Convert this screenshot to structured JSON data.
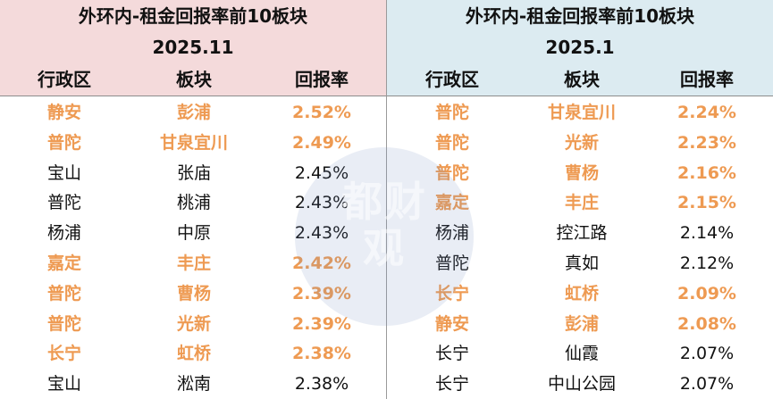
{
  "left": {
    "title": "外环内-租金回报率前10板块",
    "date": "2025.11",
    "headers": [
      "行政区",
      "板块",
      "回报率"
    ],
    "rows": [
      {
        "district": "静安",
        "block": "彭浦",
        "rate": "2.52%",
        "highlight": true
      },
      {
        "district": "普陀",
        "block": "甘泉宜川",
        "rate": "2.49%",
        "highlight": true
      },
      {
        "district": "宝山",
        "block": "张庙",
        "rate": "2.45%",
        "highlight": false
      },
      {
        "district": "普陀",
        "block": "桃浦",
        "rate": "2.43%",
        "highlight": false
      },
      {
        "district": "杨浦",
        "block": "中原",
        "rate": "2.43%",
        "highlight": false
      },
      {
        "district": "嘉定",
        "block": "丰庄",
        "rate": "2.42%",
        "highlight": true
      },
      {
        "district": "普陀",
        "block": "曹杨",
        "rate": "2.39%",
        "highlight": true
      },
      {
        "district": "普陀",
        "block": "光新",
        "rate": "2.39%",
        "highlight": true
      },
      {
        "district": "长宁",
        "block": "虹桥",
        "rate": "2.38%",
        "highlight": true
      },
      {
        "district": "宝山",
        "block": "淞南",
        "rate": "2.38%",
        "highlight": false
      }
    ]
  },
  "right": {
    "title": "外环内-租金回报率前10板块",
    "date": "2025.1",
    "headers": [
      "行政区",
      "板块",
      "回报率"
    ],
    "rows": [
      {
        "district": "普陀",
        "block": "甘泉宜川",
        "rate": "2.24%",
        "highlight": true
      },
      {
        "district": "普陀",
        "block": "光新",
        "rate": "2.23%",
        "highlight": true
      },
      {
        "district": "普陀",
        "block": "曹杨",
        "rate": "2.16%",
        "highlight": true
      },
      {
        "district": "嘉定",
        "block": "丰庄",
        "rate": "2.15%",
        "highlight": true
      },
      {
        "district": "杨浦",
        "block": "控江路",
        "rate": "2.14%",
        "highlight": false
      },
      {
        "district": "普陀",
        "block": "真如",
        "rate": "2.12%",
        "highlight": false
      },
      {
        "district": "长宁",
        "block": "虹桥",
        "rate": "2.09%",
        "highlight": true
      },
      {
        "district": "静安",
        "block": "彭浦",
        "rate": "2.08%",
        "highlight": true
      },
      {
        "district": "长宁",
        "block": "仙霞",
        "rate": "2.07%",
        "highlight": false
      },
      {
        "district": "长宁",
        "block": "中山公园",
        "rate": "2.07%",
        "highlight": false
      }
    ]
  },
  "watermark": {
    "text": "都财观"
  },
  "colors": {
    "highlight": "#ee9a52",
    "left_header_bg": "#f4dadb",
    "right_header_bg": "#dcebf1"
  }
}
